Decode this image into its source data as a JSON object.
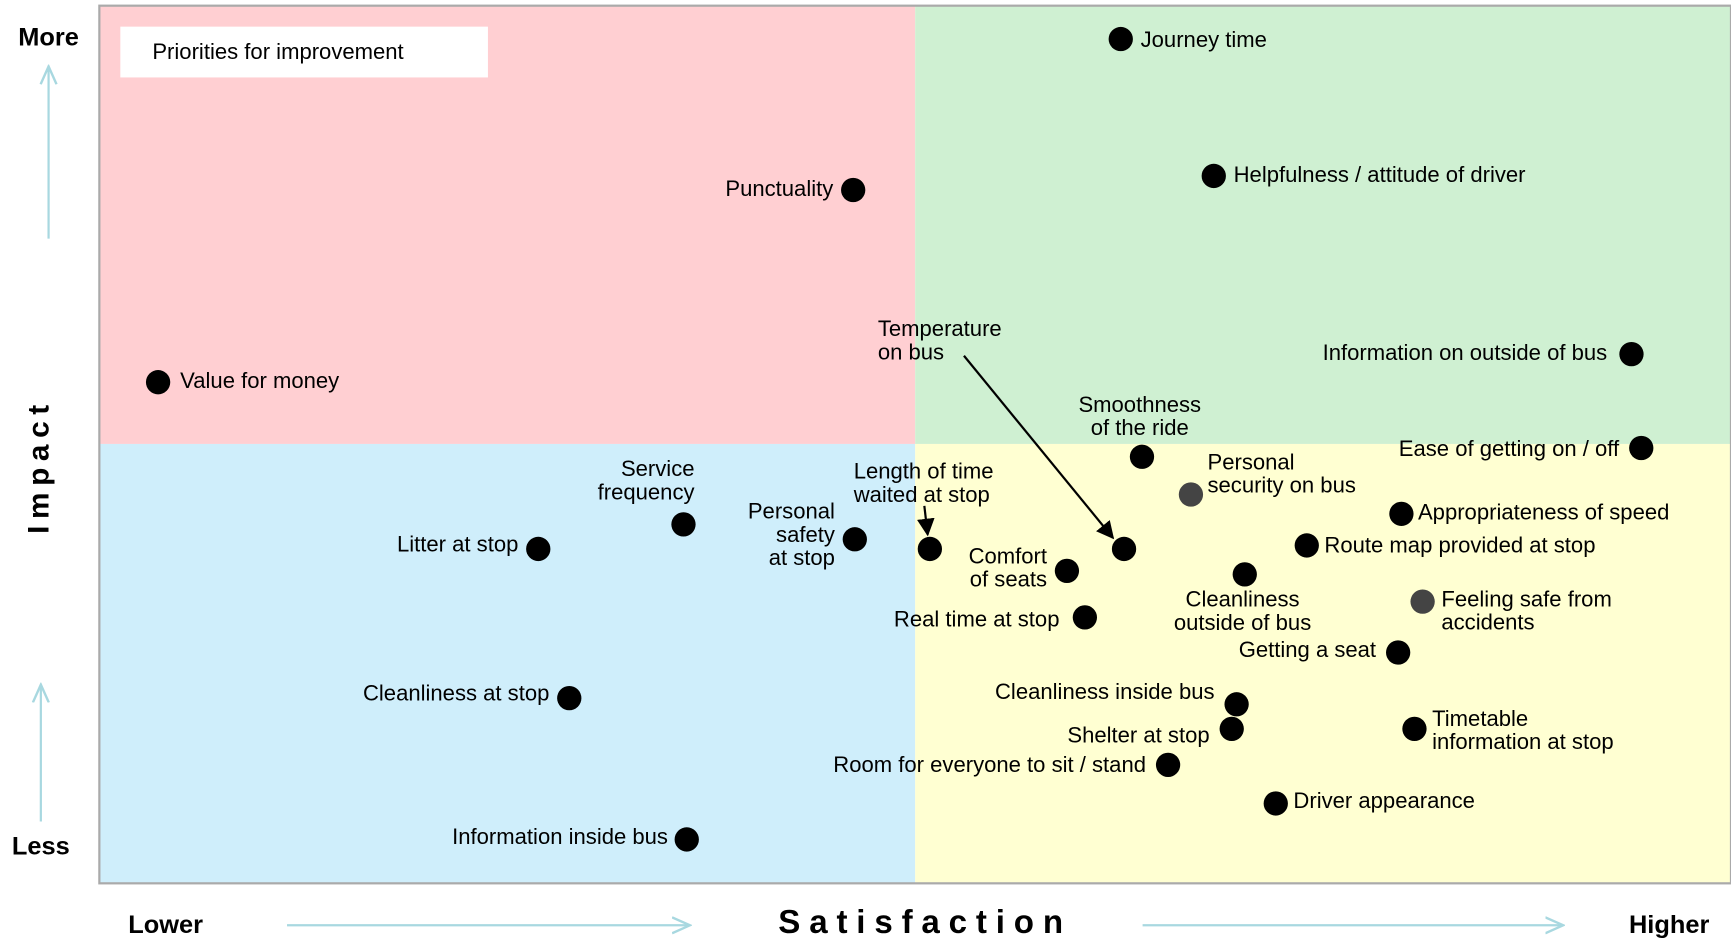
{
  "chart_data": {
    "type": "scatter",
    "legend_title": "Priorities for improvement",
    "xlabel": "Satisfaction",
    "xlow": "Lower",
    "xhigh": "Higher",
    "ylabel": "Impact",
    "yhigh": "More",
    "ylow": "Less",
    "xlim": [
      0,
      100
    ],
    "ylim": [
      0,
      100
    ],
    "color": "#000000",
    "points": [
      {
        "label": [
          "Journey time"
        ],
        "x": 62.6,
        "y": 96.2
      },
      {
        "label": [
          "Helpfulness / attitude of driver"
        ],
        "x": 68.3,
        "y": 80.6
      },
      {
        "label": [
          "Punctuality"
        ],
        "x": 46.2,
        "y": 79.0
      },
      {
        "label": [
          "Information on outside of bus"
        ],
        "x": 93.9,
        "y": 60.3
      },
      {
        "label": [
          "Value for money"
        ],
        "x": 3.6,
        "y": 57.1
      },
      {
        "label": [
          "Ease of getting on / off"
        ],
        "x": 94.5,
        "y": 49.6
      },
      {
        "label": [
          "Smoothness",
          "of the ride"
        ],
        "x": 63.9,
        "y": 48.6
      },
      {
        "label": [
          "Personal",
          "security on bus"
        ],
        "x": 66.9,
        "y": 44.3,
        "color": "#444444"
      },
      {
        "label": [
          "Appropriateness of speed"
        ],
        "x": 79.8,
        "y": 42.1
      },
      {
        "label": [
          "Route map provided at stop"
        ],
        "x": 74.0,
        "y": 38.5
      },
      {
        "label": [
          "Litter at stop"
        ],
        "x": 26.9,
        "y": 38.1
      },
      {
        "label": [
          "Service",
          "frequency"
        ],
        "x": 35.8,
        "y": 40.9
      },
      {
        "label": [
          "Personal",
          "safety",
          "at stop"
        ],
        "x": 46.3,
        "y": 39.2
      },
      {
        "label": [
          "Length of time",
          "waited at stop"
        ],
        "x": 50.9,
        "y": 38.1
      },
      {
        "label": [
          "Temperature",
          "on bus"
        ],
        "x": 62.8,
        "y": 38.1
      },
      {
        "label": [
          "Comfort",
          "of seats"
        ],
        "x": 59.3,
        "y": 35.6
      },
      {
        "label": [
          "Cleanliness",
          "outside of bus"
        ],
        "x": 70.2,
        "y": 35.2
      },
      {
        "label": [
          "Feeling safe from",
          "accidents"
        ],
        "x": 81.1,
        "y": 32.1,
        "color": "#444444"
      },
      {
        "label": [
          "Real time at stop"
        ],
        "x": 60.4,
        "y": 30.3
      },
      {
        "label": [
          "Getting a seat"
        ],
        "x": 79.6,
        "y": 26.3
      },
      {
        "label": [
          "Cleanliness at stop"
        ],
        "x": 28.8,
        "y": 21.1
      },
      {
        "label": [
          "Cleanliness inside bus"
        ],
        "x": 69.7,
        "y": 20.4
      },
      {
        "label": [
          "Shelter at stop"
        ],
        "x": 69.4,
        "y": 17.6
      },
      {
        "label": [
          "Timetable",
          "information at stop"
        ],
        "x": 80.6,
        "y": 17.6
      },
      {
        "label": [
          "Room for everyone to sit / stand"
        ],
        "x": 65.5,
        "y": 13.5
      },
      {
        "label": [
          "Driver appearance"
        ],
        "x": 72.1,
        "y": 9.1
      },
      {
        "label": [
          "Information inside bus"
        ],
        "x": 36.0,
        "y": 5.0
      }
    ]
  }
}
